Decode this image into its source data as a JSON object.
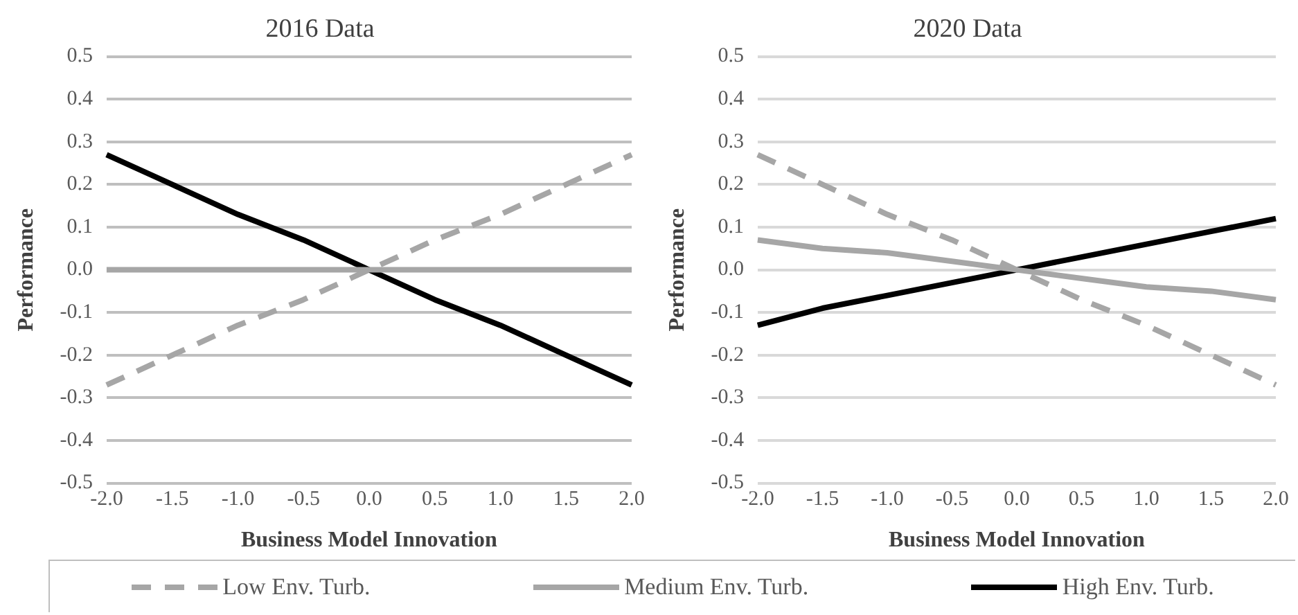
{
  "chart_data": [
    {
      "type": "line",
      "title": "2016 Data",
      "xlabel": "Business Model Innovation",
      "ylabel": "Performance",
      "ylim": [
        -0.5,
        0.5
      ],
      "categories": [
        "-2.0",
        "-1.5",
        "-1.0",
        "-0.5",
        "0.0",
        "0.5",
        "1.0",
        "1.5",
        "2.0"
      ],
      "yticks": [
        -0.5,
        -0.4,
        -0.3,
        -0.2,
        -0.1,
        {
          "value": 0,
          "label": "0.0"
        },
        0.1,
        0.2,
        0.3,
        0.4,
        0.5
      ],
      "grid": "y",
      "legend": "bottom",
      "marker": "none",
      "series": [
        {
          "name": "Low Env. Turb.",
          "color": "#a6a6a6",
          "line_style": "dashed",
          "values": [
            -0.27,
            -0.2,
            -0.13,
            -0.07,
            0,
            0.07,
            0.13,
            0.2,
            0.27
          ]
        },
        {
          "name": "Medium Env. Turb.",
          "color": "#a6a6a6",
          "line_style": "solid",
          "values": [
            0,
            0,
            0,
            0,
            0,
            0,
            0,
            0,
            0
          ]
        },
        {
          "name": "High Env. Turb.",
          "color": "#000000",
          "line_style": "solid",
          "values": [
            0.27,
            0.2,
            0.13,
            0.07,
            0,
            -0.07,
            -0.13,
            -0.2,
            -0.27
          ]
        }
      ]
    },
    {
      "type": "line",
      "title": "2020 Data",
      "xlabel": "Business Model Innovation",
      "ylabel": "Performance",
      "ylim": [
        -0.5,
        0.5
      ],
      "categories": [
        "-2.0",
        "-1.5",
        "-1.0",
        "-0.5",
        "0.0",
        "0.5",
        "1.0",
        "1.5",
        "2.0"
      ],
      "yticks": [
        -0.5,
        -0.4,
        -0.3,
        -0.2,
        -0.1,
        {
          "value": 0,
          "label": "0.0"
        },
        0.1,
        0.2,
        0.3,
        0.4,
        0.5
      ],
      "grid": "y",
      "legend": "bottom",
      "marker": "none",
      "series": [
        {
          "name": "Low Env. Turb.",
          "color": "#a6a6a6",
          "line_style": "dashed",
          "values": [
            0.27,
            0.2,
            0.13,
            0.07,
            0,
            -0.07,
            -0.13,
            -0.2,
            -0.27
          ]
        },
        {
          "name": "Medium Env. Turb.",
          "color": "#a6a6a6",
          "line_style": "solid",
          "values": [
            0.07,
            0.05,
            0.04,
            0.02,
            0,
            -0.02,
            -0.04,
            -0.05,
            -0.07
          ]
        },
        {
          "name": "High Env. Turb.",
          "color": "#000000",
          "line_style": "solid",
          "values": [
            -0.13,
            -0.09,
            -0.06,
            -0.03,
            0,
            0.03,
            0.06,
            0.09,
            0.12
          ]
        }
      ]
    }
  ]
}
